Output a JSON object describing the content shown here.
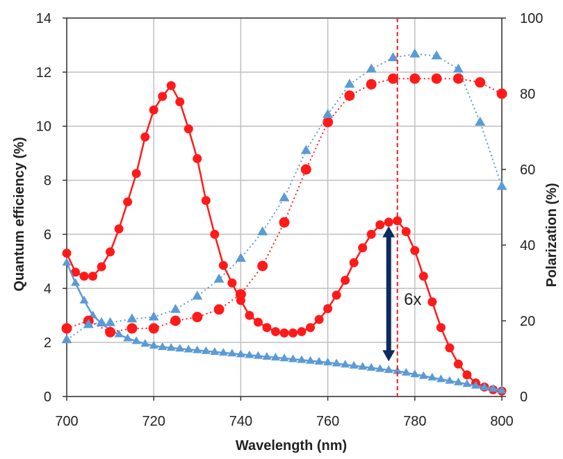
{
  "chart_data": {
    "type": "line",
    "xlabel": "Wavelength (nm)",
    "ylabel_left": "Quantum efficiency (%)",
    "ylabel_right": "Polarization (%)",
    "xlim": [
      700,
      800
    ],
    "ylim_left": [
      0,
      14
    ],
    "ylim_right": [
      0,
      100
    ],
    "grid": true,
    "legend": "none",
    "x_ticks": [
      "700",
      "720",
      "740",
      "760",
      "780",
      "800"
    ],
    "y_left_ticks": [
      "0",
      "2",
      "4",
      "6",
      "8",
      "10",
      "12",
      "14"
    ],
    "y_right_ticks": [
      "0",
      "20",
      "40",
      "60",
      "80",
      "100"
    ],
    "colors": {
      "red": "#ff1a1a",
      "blue": "#5b9bd5",
      "arrow": "#0d2b5c",
      "vline": "#ff1a1a"
    },
    "series": [
      {
        "axis": "left",
        "marker": "circle",
        "color": "#ff1a1a",
        "line": "solid",
        "x": [
          700,
          702,
          704,
          706,
          708,
          710,
          712,
          714,
          716,
          718,
          720,
          722,
          724,
          726,
          728,
          730,
          732,
          734,
          736,
          738,
          740,
          742,
          744,
          746,
          748,
          750,
          752,
          754,
          756,
          758,
          760,
          762,
          764,
          766,
          768,
          770,
          772,
          774,
          776,
          778,
          780,
          782,
          784,
          786,
          788,
          790,
          792,
          794,
          796,
          798,
          800
        ],
        "y": [
          5.3,
          4.6,
          4.45,
          4.45,
          4.8,
          5.35,
          6.2,
          7.2,
          8.25,
          9.6,
          10.6,
          11.1,
          11.5,
          10.9,
          9.9,
          8.8,
          7.25,
          6.0,
          4.85,
          4.2,
          3.55,
          3.0,
          2.75,
          2.55,
          2.4,
          2.35,
          2.35,
          2.4,
          2.55,
          2.85,
          3.25,
          3.75,
          4.3,
          4.95,
          5.5,
          6.0,
          6.35,
          6.45,
          6.5,
          6.1,
          5.4,
          4.45,
          3.5,
          2.55,
          1.8,
          1.2,
          0.8,
          0.5,
          0.35,
          0.25,
          0.2
        ]
      },
      {
        "axis": "left",
        "marker": "triangle",
        "color": "#5b9bd5",
        "line": "solid",
        "x": [
          700,
          702,
          704,
          706,
          708,
          710,
          712,
          714,
          716,
          718,
          720,
          722,
          724,
          726,
          728,
          730,
          732,
          734,
          736,
          738,
          740,
          742,
          744,
          746,
          748,
          750,
          752,
          754,
          756,
          758,
          760,
          762,
          764,
          766,
          768,
          770,
          772,
          774,
          776,
          778,
          780,
          782,
          784,
          786,
          788,
          790,
          792,
          794,
          796,
          798,
          800
        ],
        "y": [
          4.95,
          4.2,
          3.55,
          3.0,
          2.7,
          2.45,
          2.3,
          2.15,
          2.05,
          1.95,
          1.88,
          1.83,
          1.8,
          1.77,
          1.74,
          1.71,
          1.68,
          1.65,
          1.62,
          1.59,
          1.56,
          1.53,
          1.5,
          1.47,
          1.44,
          1.41,
          1.38,
          1.35,
          1.32,
          1.29,
          1.26,
          1.22,
          1.18,
          1.14,
          1.1,
          1.06,
          1.02,
          0.98,
          0.94,
          0.88,
          0.82,
          0.76,
          0.7,
          0.64,
          0.58,
          0.52,
          0.46,
          0.4,
          0.34,
          0.28,
          0.22
        ]
      },
      {
        "axis": "right",
        "marker": "circle",
        "color": "#ff1a1a",
        "line": "dotted",
        "x": [
          700,
          705,
          710,
          715,
          720,
          725,
          730,
          735,
          740,
          745,
          750,
          755,
          760,
          765,
          770,
          775,
          780,
          785,
          790,
          795,
          800
        ],
        "y": [
          18,
          20,
          17,
          18,
          18,
          20,
          21,
          23,
          27,
          34.5,
          46,
          60,
          72.5,
          79.5,
          82.5,
          84,
          84,
          84,
          84,
          83,
          80
        ]
      },
      {
        "axis": "right",
        "marker": "triangle",
        "color": "#5b9bd5",
        "line": "dotted",
        "x": [
          700,
          705,
          708,
          710,
          715,
          720,
          725,
          730,
          735,
          740,
          745,
          750,
          755,
          760,
          765,
          770,
          775,
          780,
          785,
          790,
          795,
          800
        ],
        "y": [
          15,
          19,
          19.5,
          19.5,
          20.5,
          21,
          23,
          26.5,
          31,
          36.5,
          43.5,
          52.5,
          65,
          74.5,
          82.5,
          86.5,
          89.5,
          90.5,
          90,
          86.5,
          72.5,
          55.5
        ]
      }
    ],
    "annotations": [
      {
        "type": "vline",
        "x": 776,
        "style": "dashed",
        "color": "#ff1a1a"
      },
      {
        "type": "double-arrow",
        "x": 774,
        "y_from": 1.3,
        "y_to": 6.3,
        "color": "#0d2b5c"
      },
      {
        "type": "text",
        "text": "6x",
        "x": 777.5,
        "y": 3.6
      }
    ]
  }
}
